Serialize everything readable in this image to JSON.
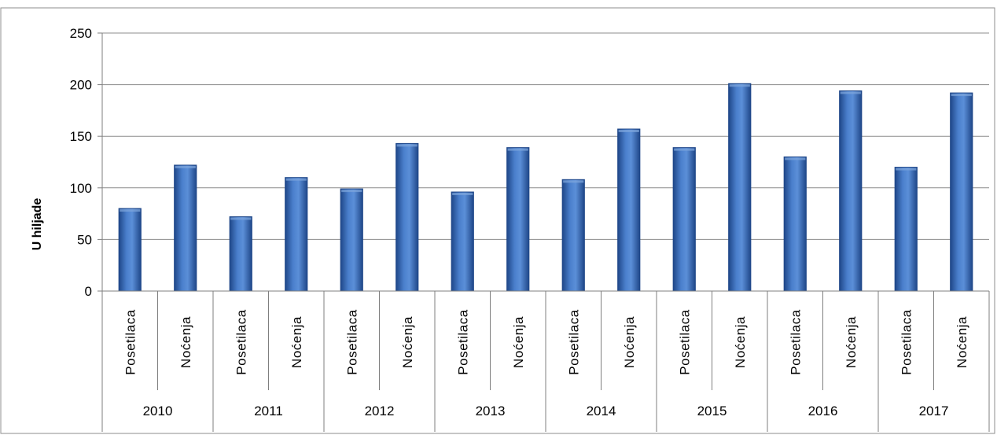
{
  "chart_data": {
    "type": "bar",
    "title": "",
    "xlabel": "",
    "ylabel": "U hiljade",
    "ylim": [
      0,
      250
    ],
    "yticks": [
      0,
      50,
      100,
      150,
      200,
      250
    ],
    "grid": true,
    "legend": "none",
    "groups": [
      {
        "label": "2010",
        "items": [
          {
            "label": "Posetilaca",
            "value": 80
          },
          {
            "label": "Noćenja",
            "value": 122
          }
        ]
      },
      {
        "label": "2011",
        "items": [
          {
            "label": "Posetilaca",
            "value": 72
          },
          {
            "label": "Noćenja",
            "value": 110
          }
        ]
      },
      {
        "label": "2012",
        "items": [
          {
            "label": "Posetilaca",
            "value": 99
          },
          {
            "label": "Noćenja",
            "value": 143
          }
        ]
      },
      {
        "label": "2013",
        "items": [
          {
            "label": "Posetilaca",
            "value": 96
          },
          {
            "label": "Noćenja",
            "value": 139
          }
        ]
      },
      {
        "label": "2014",
        "items": [
          {
            "label": "Posetilaca",
            "value": 108
          },
          {
            "label": "Noćenja",
            "value": 157
          }
        ]
      },
      {
        "label": "2015",
        "items": [
          {
            "label": "Posetilaca",
            "value": 139
          },
          {
            "label": "Noćenja",
            "value": 201
          }
        ]
      },
      {
        "label": "2016",
        "items": [
          {
            "label": "Posetilaca",
            "value": 130
          },
          {
            "label": "Noćenja",
            "value": 194
          }
        ]
      },
      {
        "label": "2017",
        "items": [
          {
            "label": "Posetilaca",
            "value": 120
          },
          {
            "label": "Noćenja",
            "value": 192
          }
        ]
      }
    ],
    "colors": {
      "bar": "#3a6fbd",
      "bar_dark": "#1f4789",
      "bar_light": "#7fa6dd",
      "grid": "#8c8c8c",
      "axis": "#7f7f7f",
      "frame": "#8c8c8c"
    }
  }
}
